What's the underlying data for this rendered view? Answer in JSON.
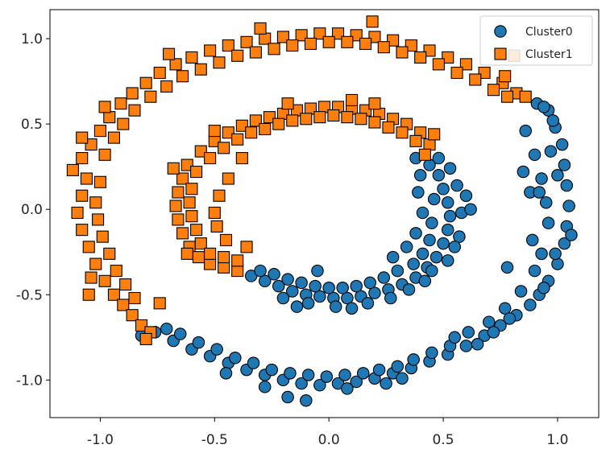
{
  "chart_data": {
    "type": "scatter",
    "title": "",
    "xlabel": "",
    "ylabel": "",
    "xlim": [
      -1.22,
      1.18
    ],
    "ylim": [
      -1.22,
      1.17
    ],
    "grid": false,
    "legend_position": "top-right",
    "x_ticks": [
      -1.0,
      -0.5,
      0.0,
      0.5,
      1.0
    ],
    "x_tick_labels": [
      "-1.0",
      "-0.5",
      "0.0",
      "0.5",
      "1.0"
    ],
    "y_ticks": [
      1.0,
      0.5,
      0.0,
      -0.5,
      -1.0
    ],
    "y_tick_labels": [
      "1.0",
      "0.5",
      "0.0",
      "-0.5",
      "-1.0"
    ],
    "series": [
      {
        "name": "Cluster0",
        "marker": "circle",
        "color": "#1f77b4",
        "points": [
          [
            0.91,
            0.62
          ],
          [
            0.96,
            0.58
          ],
          [
            0.99,
            0.48
          ],
          [
            1.02,
            0.38
          ],
          [
            1.03,
            0.26
          ],
          [
            1.04,
            0.14
          ],
          [
            1.05,
            0.02
          ],
          [
            1.04,
            -0.1
          ],
          [
            1.03,
            -0.2
          ],
          [
            1.0,
            -0.32
          ],
          [
            0.96,
            -0.42
          ],
          [
            0.92,
            -0.5
          ],
          [
            0.88,
            -0.56
          ],
          [
            0.82,
            -0.62
          ],
          [
            0.75,
            -0.68
          ],
          [
            0.68,
            -0.74
          ],
          [
            0.6,
            -0.8
          ],
          [
            0.52,
            -0.85
          ],
          [
            0.44,
            -0.89
          ],
          [
            0.36,
            -0.93
          ],
          [
            0.28,
            -0.96
          ],
          [
            0.2,
            -0.99
          ],
          [
            0.12,
            -1.01
          ],
          [
            0.04,
            -1.02
          ],
          [
            -0.04,
            -1.03
          ],
          [
            -0.12,
            -1.02
          ],
          [
            -0.2,
            -1.0
          ],
          [
            -0.28,
            -0.97
          ],
          [
            -0.36,
            -0.94
          ],
          [
            -0.44,
            -0.9
          ],
          [
            -0.52,
            -0.86
          ],
          [
            -0.6,
            -0.82
          ],
          [
            -0.68,
            -0.77
          ],
          [
            -0.76,
            -0.72
          ],
          [
            -0.82,
            -0.74
          ],
          [
            0.86,
            0.46
          ],
          [
            0.9,
            0.32
          ],
          [
            0.93,
            0.18
          ],
          [
            0.95,
            0.04
          ],
          [
            0.96,
            -0.08
          ],
          [
            0.93,
            -0.26
          ],
          [
            0.9,
            -0.36
          ],
          [
            0.84,
            -0.48
          ],
          [
            0.77,
            -0.58
          ],
          [
            0.7,
            -0.66
          ],
          [
            0.61,
            -0.72
          ],
          [
            0.53,
            -0.8
          ],
          [
            0.45,
            -0.84
          ],
          [
            0.37,
            -0.88
          ],
          [
            0.3,
            -0.92
          ],
          [
            0.22,
            -0.94
          ],
          [
            0.15,
            -0.96
          ],
          [
            0.07,
            -0.97
          ],
          [
            -0.01,
            -0.98
          ],
          [
            -0.09,
            -0.97
          ],
          [
            -0.17,
            -0.96
          ],
          [
            -0.25,
            -0.94
          ],
          [
            -0.33,
            -0.9
          ],
          [
            -0.41,
            -0.87
          ],
          [
            -0.49,
            -0.82
          ],
          [
            -0.57,
            -0.78
          ],
          [
            -0.65,
            -0.73
          ],
          [
            -0.71,
            -0.7
          ],
          [
            0.98,
            0.52
          ],
          [
            1.0,
            0.2
          ],
          [
            0.99,
            -0.26
          ],
          [
            0.94,
            -0.46
          ],
          [
            0.79,
            -0.64
          ],
          [
            0.55,
            -0.75
          ],
          [
            0.32,
            -0.99
          ],
          [
            -0.18,
            -1.1
          ],
          [
            -0.1,
            -1.12
          ],
          [
            -0.28,
            -1.04
          ],
          [
            0.08,
            -1.05
          ],
          [
            0.25,
            -1.02
          ],
          [
            -0.45,
            -0.96
          ],
          [
            0.65,
            -0.79
          ],
          [
            0.72,
            -0.72
          ],
          [
            1.06,
            -0.15
          ],
          [
            0.88,
            0.1
          ],
          [
            0.89,
            -0.18
          ],
          [
            0.78,
            -0.34
          ],
          [
            0.85,
            0.22
          ],
          [
            0.94,
            0.6
          ],
          [
            0.92,
            0.1
          ],
          [
            0.97,
            0.34
          ],
          [
            0.48,
            0.2
          ],
          [
            0.5,
            0.12
          ],
          [
            0.52,
            0.04
          ],
          [
            0.53,
            -0.04
          ],
          [
            0.52,
            -0.12
          ],
          [
            0.5,
            -0.2
          ],
          [
            0.47,
            -0.28
          ],
          [
            0.43,
            -0.34
          ],
          [
            0.38,
            -0.4
          ],
          [
            0.32,
            -0.44
          ],
          [
            0.26,
            -0.47
          ],
          [
            0.2,
            -0.49
          ],
          [
            0.14,
            -0.51
          ],
          [
            0.08,
            -0.52
          ],
          [
            0.02,
            -0.52
          ],
          [
            -0.04,
            -0.51
          ],
          [
            -0.1,
            -0.5
          ],
          [
            -0.16,
            -0.48
          ],
          [
            -0.22,
            -0.45
          ],
          [
            -0.28,
            -0.42
          ],
          [
            -0.34,
            -0.39
          ],
          [
            0.44,
            0.26
          ],
          [
            0.46,
            0.06
          ],
          [
            0.45,
            -0.08
          ],
          [
            0.44,
            -0.18
          ],
          [
            0.41,
            -0.26
          ],
          [
            0.37,
            -0.32
          ],
          [
            0.3,
            -0.36
          ],
          [
            0.24,
            -0.4
          ],
          [
            0.18,
            -0.43
          ],
          [
            0.12,
            -0.45
          ],
          [
            0.06,
            -0.46
          ],
          [
            0.0,
            -0.46
          ],
          [
            -0.06,
            -0.45
          ],
          [
            -0.12,
            -0.43
          ],
          [
            -0.18,
            -0.41
          ],
          [
            -0.24,
            -0.38
          ],
          [
            -0.3,
            -0.36
          ],
          [
            0.56,
            0.14
          ],
          [
            0.58,
            -0.02
          ],
          [
            0.57,
            -0.16
          ],
          [
            0.55,
            -0.22
          ],
          [
            0.52,
            -0.3
          ],
          [
            0.42,
            -0.42
          ],
          [
            0.35,
            -0.47
          ],
          [
            0.27,
            -0.52
          ],
          [
            0.17,
            -0.55
          ],
          [
            0.03,
            -0.57
          ],
          [
            -0.09,
            -0.55
          ],
          [
            -0.2,
            -0.52
          ],
          [
            0.38,
            0.3
          ],
          [
            0.4,
            0.2
          ],
          [
            0.39,
            0.1
          ],
          [
            0.41,
            -0.02
          ],
          [
            0.38,
            -0.14
          ],
          [
            0.34,
            -0.22
          ],
          [
            0.28,
            -0.28
          ],
          [
            0.6,
            0.08
          ],
          [
            0.62,
            0.0
          ],
          [
            0.48,
            0.3
          ],
          [
            0.53,
            0.24
          ],
          [
            0.45,
            -0.36
          ],
          [
            -0.05,
            -0.36
          ],
          [
            -0.14,
            -0.57
          ],
          [
            0.1,
            -0.58
          ]
        ]
      },
      {
        "name": "Cluster1",
        "marker": "square",
        "color": "#ff7f0e",
        "points": [
          [
            -1.12,
            0.23
          ],
          [
            -1.08,
            0.3
          ],
          [
            -1.04,
            0.38
          ],
          [
            -1.0,
            0.46
          ],
          [
            -0.96,
            0.54
          ],
          [
            -0.91,
            0.62
          ],
          [
            -0.86,
            0.68
          ],
          [
            -0.8,
            0.74
          ],
          [
            -0.74,
            0.8
          ],
          [
            -0.67,
            0.85
          ],
          [
            -0.6,
            0.89
          ],
          [
            -0.52,
            0.93
          ],
          [
            -0.44,
            0.96
          ],
          [
            -0.36,
            0.98
          ],
          [
            -0.28,
            1.0
          ],
          [
            -0.2,
            1.01
          ],
          [
            -0.12,
            1.02
          ],
          [
            -0.04,
            1.03
          ],
          [
            0.04,
            1.03
          ],
          [
            0.12,
            1.02
          ],
          [
            0.2,
            1.01
          ],
          [
            0.28,
            0.99
          ],
          [
            0.36,
            0.96
          ],
          [
            0.44,
            0.93
          ],
          [
            0.52,
            0.89
          ],
          [
            0.6,
            0.85
          ],
          [
            0.68,
            0.8
          ],
          [
            0.76,
            0.74
          ],
          [
            0.82,
            0.68
          ],
          [
            -1.06,
            0.18
          ],
          [
            -1.08,
            0.08
          ],
          [
            -1.1,
            -0.02
          ],
          [
            -1.08,
            -0.12
          ],
          [
            -1.05,
            -0.22
          ],
          [
            -1.02,
            -0.32
          ],
          [
            -0.98,
            -0.42
          ],
          [
            -0.94,
            -0.5
          ],
          [
            -0.9,
            -0.56
          ],
          [
            -0.86,
            -0.62
          ],
          [
            -0.82,
            -0.68
          ],
          [
            -0.78,
            -0.72
          ],
          [
            -1.0,
            0.16
          ],
          [
            -1.02,
            0.04
          ],
          [
            -1.01,
            -0.06
          ],
          [
            -0.99,
            -0.16
          ],
          [
            -0.96,
            -0.26
          ],
          [
            -0.93,
            -0.36
          ],
          [
            -0.89,
            -0.44
          ],
          [
            -0.85,
            -0.52
          ],
          [
            -0.98,
            0.32
          ],
          [
            -0.94,
            0.42
          ],
          [
            -0.9,
            0.5
          ],
          [
            -0.85,
            0.58
          ],
          [
            -0.78,
            0.66
          ],
          [
            -0.71,
            0.72
          ],
          [
            -0.64,
            0.78
          ],
          [
            -0.56,
            0.82
          ],
          [
            -0.48,
            0.86
          ],
          [
            -0.4,
            0.9
          ],
          [
            -0.32,
            0.92
          ],
          [
            -0.24,
            0.94
          ],
          [
            -0.16,
            0.96
          ],
          [
            -0.08,
            0.97
          ],
          [
            0.0,
            0.98
          ],
          [
            0.08,
            0.98
          ],
          [
            0.16,
            0.97
          ],
          [
            0.24,
            0.95
          ],
          [
            0.32,
            0.92
          ],
          [
            0.4,
            0.89
          ],
          [
            0.48,
            0.85
          ],
          [
            0.56,
            0.8
          ],
          [
            0.64,
            0.76
          ],
          [
            0.72,
            0.7
          ],
          [
            0.78,
            0.66
          ],
          [
            -0.7,
            0.91
          ],
          [
            -0.3,
            1.06
          ],
          [
            0.19,
            1.1
          ],
          [
            0.81,
            0.9
          ],
          [
            0.77,
            0.78
          ],
          [
            0.86,
            0.66
          ],
          [
            -1.08,
            0.42
          ],
          [
            -1.04,
            -0.4
          ],
          [
            -0.98,
            0.6
          ],
          [
            -0.8,
            -0.76
          ],
          [
            -0.74,
            -0.55
          ],
          [
            -1.05,
            -0.5
          ],
          [
            -0.62,
            0.26
          ],
          [
            -0.56,
            0.34
          ],
          [
            -0.5,
            0.4
          ],
          [
            -0.44,
            0.45
          ],
          [
            -0.38,
            0.49
          ],
          [
            -0.32,
            0.52
          ],
          [
            -0.26,
            0.54
          ],
          [
            -0.2,
            0.56
          ],
          [
            -0.14,
            0.58
          ],
          [
            -0.08,
            0.59
          ],
          [
            -0.02,
            0.6
          ],
          [
            0.04,
            0.6
          ],
          [
            0.1,
            0.59
          ],
          [
            0.16,
            0.58
          ],
          [
            0.22,
            0.56
          ],
          [
            0.28,
            0.53
          ],
          [
            0.34,
            0.5
          ],
          [
            0.4,
            0.45
          ],
          [
            0.44,
            0.38
          ],
          [
            -0.64,
            0.18
          ],
          [
            -0.66,
            0.1
          ],
          [
            -0.67,
            0.02
          ],
          [
            -0.66,
            -0.06
          ],
          [
            -0.64,
            -0.14
          ],
          [
            -0.61,
            -0.22
          ],
          [
            -0.57,
            -0.28
          ],
          [
            -0.52,
            -0.32
          ],
          [
            -0.46,
            -0.34
          ],
          [
            -0.4,
            -0.36
          ],
          [
            -0.58,
            0.22
          ],
          [
            -0.52,
            0.3
          ],
          [
            -0.46,
            0.36
          ],
          [
            -0.4,
            0.41
          ],
          [
            -0.34,
            0.45
          ],
          [
            -0.28,
            0.47
          ],
          [
            -0.22,
            0.5
          ],
          [
            -0.16,
            0.52
          ],
          [
            -0.1,
            0.53
          ],
          [
            -0.04,
            0.54
          ],
          [
            0.02,
            0.55
          ],
          [
            0.08,
            0.54
          ],
          [
            0.14,
            0.53
          ],
          [
            0.2,
            0.51
          ],
          [
            0.26,
            0.48
          ],
          [
            0.32,
            0.45
          ],
          [
            0.38,
            0.4
          ],
          [
            -0.6,
            0.12
          ],
          [
            -0.61,
            0.04
          ],
          [
            -0.6,
            -0.04
          ],
          [
            -0.58,
            -0.12
          ],
          [
            -0.56,
            -0.2
          ],
          [
            -0.52,
            -0.26
          ],
          [
            -0.46,
            -0.28
          ],
          [
            -0.4,
            -0.3
          ],
          [
            -0.48,
            0.08
          ],
          [
            -0.5,
            -0.02
          ],
          [
            -0.49,
            -0.1
          ],
          [
            -0.45,
            -0.18
          ],
          [
            -0.44,
            0.18
          ],
          [
            -0.38,
            0.3
          ],
          [
            0.1,
            0.64
          ],
          [
            0.42,
            0.32
          ],
          [
            0.46,
            0.44
          ],
          [
            -0.68,
            0.24
          ],
          [
            -0.62,
            -0.26
          ],
          [
            -0.36,
            -0.22
          ],
          [
            0.2,
            0.62
          ],
          [
            -0.18,
            0.62
          ],
          [
            -0.5,
            0.46
          ]
        ]
      }
    ]
  }
}
